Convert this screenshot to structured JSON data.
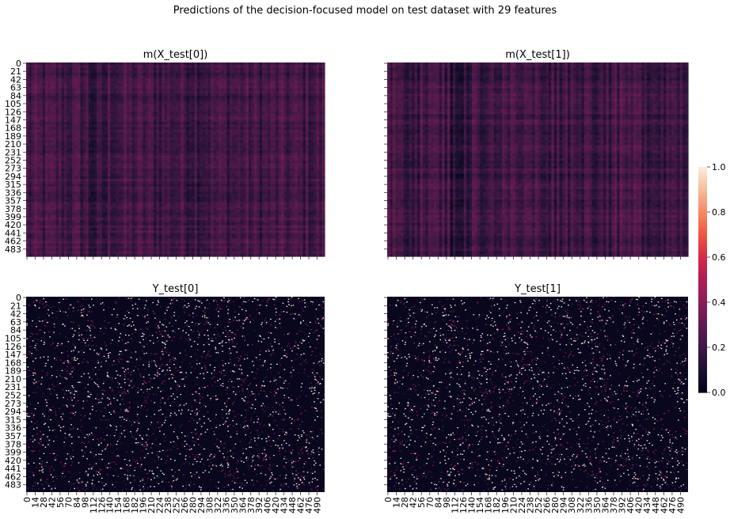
{
  "figure": {
    "suptitle": "Predictions of the decision-focused model on test dataset with 29 features"
  },
  "chart_data": [
    {
      "type": "heatmap",
      "title": "m(X_test[0])",
      "rows": 500,
      "cols": 500,
      "y_tick_labels": [
        "0",
        "21",
        "42",
        "63",
        "84",
        "105",
        "126",
        "147",
        "168",
        "189",
        "210",
        "231",
        "252",
        "273",
        "294",
        "315",
        "336",
        "357",
        "378",
        "399",
        "420",
        "441",
        "462",
        "483"
      ],
      "x_tick_labels": [],
      "value_range": [
        0.0,
        0.55
      ],
      "typical_value": 0.2,
      "pattern": "column-striped"
    },
    {
      "type": "heatmap",
      "title": "m(X_test[1])",
      "rows": 500,
      "cols": 500,
      "y_tick_labels": [],
      "x_tick_labels": [],
      "value_range": [
        0.0,
        0.55
      ],
      "typical_value": 0.2,
      "pattern": "column-striped"
    },
    {
      "type": "heatmap",
      "title": "Y_test[0]",
      "rows": 500,
      "cols": 500,
      "y_tick_labels": [
        "0",
        "21",
        "42",
        "63",
        "84",
        "105",
        "126",
        "147",
        "168",
        "189",
        "210",
        "231",
        "252",
        "273",
        "294",
        "315",
        "336",
        "357",
        "378",
        "399",
        "420",
        "441",
        "462",
        "483"
      ],
      "x_tick_labels": [
        "0",
        "14",
        "28",
        "42",
        "56",
        "70",
        "84",
        "98",
        "112",
        "126",
        "140",
        "154",
        "168",
        "182",
        "196",
        "210",
        "224",
        "238",
        "252",
        "266",
        "280",
        "294",
        "308",
        "322",
        "336",
        "350",
        "364",
        "378",
        "392",
        "406",
        "420",
        "434",
        "448",
        "462",
        "476",
        "490"
      ],
      "value_range": [
        0.0,
        1.0
      ],
      "typical_value": 0.0,
      "pattern": "sparse-random"
    },
    {
      "type": "heatmap",
      "title": "Y_test[1]",
      "rows": 500,
      "cols": 500,
      "y_tick_labels": [],
      "x_tick_labels": [
        "0",
        "14",
        "28",
        "42",
        "56",
        "70",
        "84",
        "98",
        "112",
        "126",
        "140",
        "154",
        "168",
        "182",
        "196",
        "210",
        "224",
        "238",
        "252",
        "266",
        "280",
        "294",
        "308",
        "322",
        "336",
        "350",
        "364",
        "378",
        "392",
        "406",
        "420",
        "434",
        "448",
        "462",
        "476",
        "490"
      ],
      "value_range": [
        0.0,
        1.0
      ],
      "typical_value": 0.0,
      "pattern": "sparse-random"
    }
  ],
  "colorbar": {
    "colormap": "rocket",
    "vmin": 0.0,
    "vmax": 1.0,
    "tick_labels": [
      "0.0",
      "0.2",
      "0.4",
      "0.6",
      "0.8",
      "1.0"
    ]
  }
}
